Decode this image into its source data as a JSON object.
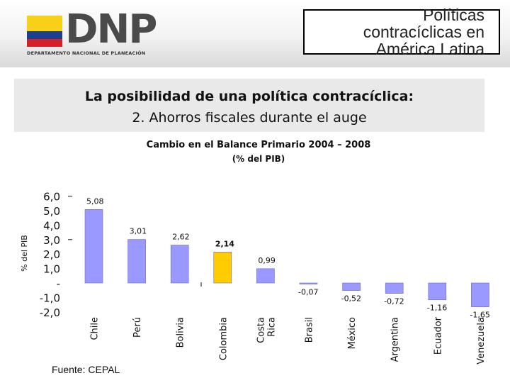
{
  "header": {
    "logo_text": "DNP",
    "logo_subtitle": "DEPARTAMENTO NACIONAL DE PLANEACIÓN",
    "title_lines": [
      "Políticas",
      "contracíclicas en",
      "América Latina"
    ],
    "flag_colors": [
      "#f7d117",
      "#1d3f8f",
      "#d61f26"
    ]
  },
  "slide": {
    "subtitle_bold": "La posibilidad de una política contracíclica:",
    "subtitle_regular": "2. Ahorros fiscales durante el auge"
  },
  "source": "Fuente: CEPAL",
  "chart_data": {
    "type": "bar",
    "title": "Cambio en el Balance Primario 2004 – 2008",
    "subtitle": "(% del PIB)",
    "ylabel": "% del PIB",
    "ylim": [
      -2.0,
      6.0
    ],
    "ytick_labels": [
      "6,0",
      "5,0",
      "4,0",
      "3,0",
      "2,0",
      "1,0",
      "-",
      "-1,0",
      "-2,0"
    ],
    "categories": [
      [
        "Chile"
      ],
      [
        "Perú"
      ],
      [
        "Bolivia"
      ],
      [
        "Colombia"
      ],
      [
        "Costa",
        "Rica"
      ],
      [
        "Brasil"
      ],
      [
        "México"
      ],
      [
        "Argentina"
      ],
      [
        "Ecuador"
      ],
      [
        "Venezuela"
      ]
    ],
    "values": [
      5.08,
      3.01,
      2.62,
      2.14,
      0.99,
      -0.07,
      -0.52,
      -0.72,
      -1.16,
      -1.65
    ],
    "value_labels": [
      "5,08",
      "3,01",
      "2,62",
      "2,14",
      "0,99",
      "-0,07",
      "-0,52",
      "-0,72",
      "-1,16",
      "-1,65"
    ],
    "bar_color": "#9999ff",
    "highlight_index": 3,
    "highlight_color": "#ffcc00"
  }
}
